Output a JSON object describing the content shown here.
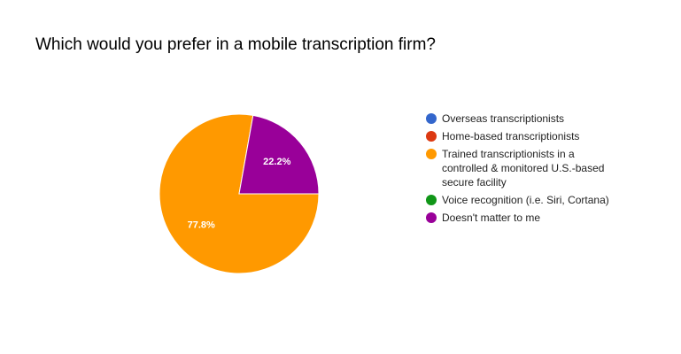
{
  "chart_data": {
    "type": "pie",
    "title": "Which would you prefer in a mobile transcription firm?",
    "categories": [
      "Overseas transcriptionists",
      "Home-based transcriptionists",
      "Trained transcriptionists in a controlled & monitored U.S.-based secure facility",
      "Voice recognition (i.e. Siri, Cortana)",
      "Doesn't matter to me"
    ],
    "values": [
      0,
      0,
      77.8,
      0,
      22.2
    ],
    "value_labels": [
      null,
      null,
      "77.8%",
      null,
      "22.2%"
    ],
    "colors": [
      "#3366cc",
      "#dc3912",
      "#ff9900",
      "#109618",
      "#990099"
    ],
    "legend": "right"
  }
}
